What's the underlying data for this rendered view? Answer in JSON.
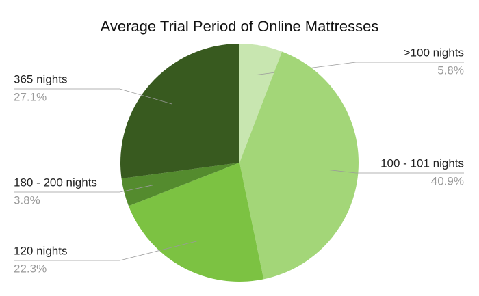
{
  "chart_data": {
    "type": "pie",
    "title": "Average Trial Period of Online Mattresses",
    "categories": [
      ">100 nights",
      "100 - 101 nights",
      "120 nights",
      "180 - 200 nights",
      "365 nights"
    ],
    "values": [
      5.8,
      40.9,
      22.3,
      3.8,
      27.1
    ],
    "value_labels": [
      "5.8%",
      "40.9%",
      "22.3%",
      "3.8%",
      "27.1%"
    ],
    "colors": [
      "#c8e6b0",
      "#a3d678",
      "#7cc242",
      "#548b2e",
      "#385a1f"
    ]
  }
}
